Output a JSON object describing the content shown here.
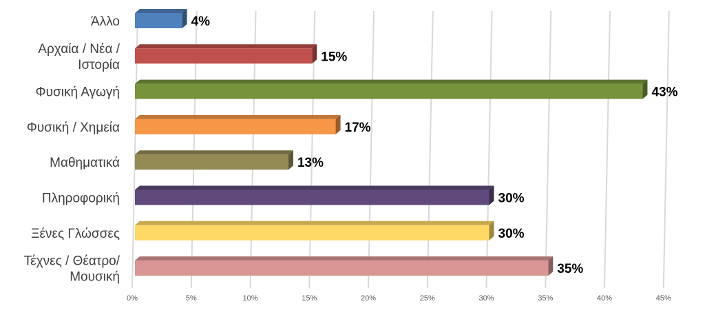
{
  "chart_data": {
    "type": "bar",
    "orientation": "horizontal",
    "style": "3d",
    "categories": [
      [
        "Άλλο"
      ],
      [
        "Αρχαία / Νέα /",
        "Ιστορία"
      ],
      [
        "Φυσική Αγωγή"
      ],
      [
        "Φυσική / Χημεία"
      ],
      [
        "Μαθηματικά"
      ],
      [
        "Πληροφορική"
      ],
      [
        "Ξένες  Γλώσσες"
      ],
      [
        "Τέχνες / Θέατρο/",
        "Μουσική"
      ]
    ],
    "values": [
      4,
      15,
      43,
      17,
      13,
      30,
      30,
      35
    ],
    "value_labels": [
      "4%",
      "15%",
      "43%",
      "17%",
      "13%",
      "30%",
      "30%",
      "35%"
    ],
    "colors": [
      "#4f81bd",
      "#c0504d",
      "#77933c",
      "#f79646",
      "#948a54",
      "#604a7b",
      "#ffd966",
      "#d99694"
    ],
    "x_ticks": [
      "0%",
      "5%",
      "10%",
      "15%",
      "20%",
      "25%",
      "30%",
      "35%",
      "40%",
      "45%"
    ],
    "xlim": [
      0,
      45
    ],
    "grid": true,
    "title": "",
    "xlabel": "",
    "ylabel": ""
  }
}
